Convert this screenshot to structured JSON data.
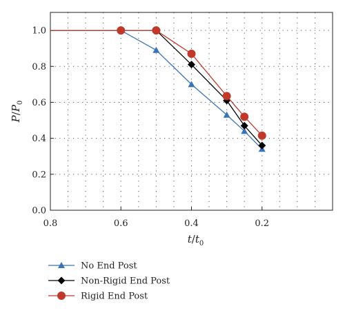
{
  "chart_data": {
    "type": "line",
    "xlabel": {
      "main": "t",
      "slash": "/",
      "main2": "t",
      "sub": "0"
    },
    "ylabel": {
      "main": "P",
      "slash": "/",
      "main2": "P",
      "sub": "0"
    },
    "xlim": [
      0.8,
      0.0
    ],
    "ylim": [
      0.0,
      1.1
    ],
    "x_ticks": [
      0.8,
      0.6,
      0.4,
      0.2
    ],
    "x_tick_labels": [
      "0.8",
      "0.6",
      "0.4",
      "0.2"
    ],
    "y_ticks": [
      0.0,
      0.2,
      0.4,
      0.6,
      0.8,
      1.0
    ],
    "y_tick_labels": [
      "0.0",
      "0.2",
      "0.4",
      "0.6",
      "0.8",
      "1.0"
    ],
    "grid": true,
    "legend_position": "bottom",
    "series": [
      {
        "name": "No End Post",
        "color": "#3a74b8",
        "marker": "triangle",
        "x": [
          0.8,
          0.6,
          0.5,
          0.4,
          0.3,
          0.25,
          0.2
        ],
        "y": [
          1.0,
          1.0,
          0.89,
          0.7,
          0.53,
          0.44,
          0.34
        ]
      },
      {
        "name": "Non-Rigid End Post",
        "color": "#000000",
        "marker": "diamond",
        "x": [
          0.8,
          0.6,
          0.5,
          0.4,
          0.3,
          0.25,
          0.2
        ],
        "y": [
          1.0,
          1.0,
          1.0,
          0.81,
          0.61,
          0.47,
          0.36
        ]
      },
      {
        "name": "Rigid End Post",
        "color": "#c0392b",
        "marker": "circle",
        "x": [
          0.8,
          0.6,
          0.5,
          0.4,
          0.3,
          0.25,
          0.2
        ],
        "y": [
          1.0,
          1.0,
          1.0,
          0.87,
          0.635,
          0.52,
          0.415
        ]
      }
    ]
  }
}
